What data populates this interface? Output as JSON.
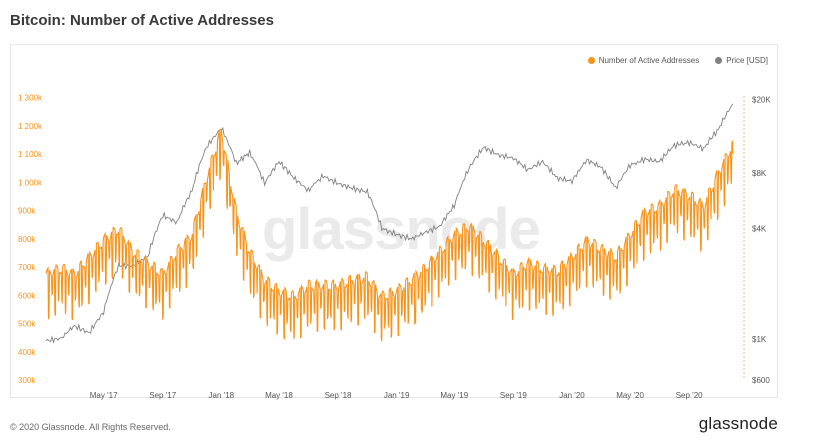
{
  "page": {
    "title": "Bitcoin: Number of Active Addresses",
    "copyright": "© 2020 Glassnode. All Rights Reserved.",
    "brand": "glassnode",
    "watermark": "glassnode"
  },
  "chart_data": {
    "type": "line",
    "title": "Bitcoin: Number of Active Addresses",
    "legend_position": "top-right",
    "x_ticks": [
      "May '17",
      "Sep '17",
      "Jan '18",
      "May '18",
      "Sep '18",
      "Jan '19",
      "May '19",
      "Sep '19",
      "Jan '20",
      "May '20",
      "Sep '20"
    ],
    "x_tick_dates": [
      "2017-05-01",
      "2017-09-01",
      "2018-01-01",
      "2018-05-01",
      "2018-09-01",
      "2019-01-01",
      "2019-05-01",
      "2019-09-01",
      "2020-01-01",
      "2020-05-01",
      "2020-09-01"
    ],
    "x_range": [
      "2017-01-01",
      "2020-12-20"
    ],
    "y_left": {
      "label": "",
      "ticks": [
        "300k",
        "400k",
        "500k",
        "600k",
        "700k",
        "800k",
        "900k",
        "1 000k",
        "1 100k",
        "1 200k",
        "1 300k"
      ],
      "range": [
        300000,
        1320000
      ],
      "color": "#f7931a"
    },
    "y_right": {
      "label": "",
      "scale": "log",
      "ticks": [
        "$600",
        "$1K",
        "$4K",
        "$8K",
        "$20K"
      ],
      "tick_values": [
        600,
        1000,
        4000,
        8000,
        20000
      ],
      "range": [
        600,
        22000
      ],
      "color": "#888888"
    },
    "grid": false,
    "series": [
      {
        "name": "Number of Active Addresses",
        "axis": "left",
        "color": "#f7931a",
        "points": [
          [
            "2017-01-01",
            640000
          ],
          [
            "2017-02-01",
            660000
          ],
          [
            "2017-03-01",
            640000
          ],
          [
            "2017-04-01",
            700000
          ],
          [
            "2017-05-01",
            760000
          ],
          [
            "2017-06-01",
            800000
          ],
          [
            "2017-07-01",
            720000
          ],
          [
            "2017-08-01",
            680000
          ],
          [
            "2017-09-01",
            640000
          ],
          [
            "2017-10-01",
            720000
          ],
          [
            "2017-11-01",
            780000
          ],
          [
            "2017-12-01",
            980000
          ],
          [
            "2018-01-01",
            1150000
          ],
          [
            "2018-02-01",
            860000
          ],
          [
            "2018-03-01",
            720000
          ],
          [
            "2018-04-01",
            620000
          ],
          [
            "2018-05-01",
            580000
          ],
          [
            "2018-06-01",
            560000
          ],
          [
            "2018-07-01",
            600000
          ],
          [
            "2018-08-01",
            600000
          ],
          [
            "2018-09-01",
            600000
          ],
          [
            "2018-10-01",
            620000
          ],
          [
            "2018-11-01",
            630000
          ],
          [
            "2018-12-01",
            560000
          ],
          [
            "2019-01-01",
            580000
          ],
          [
            "2019-02-01",
            620000
          ],
          [
            "2019-03-01",
            660000
          ],
          [
            "2019-04-01",
            720000
          ],
          [
            "2019-05-01",
            780000
          ],
          [
            "2019-06-01",
            810000
          ],
          [
            "2019-07-01",
            760000
          ],
          [
            "2019-08-01",
            700000
          ],
          [
            "2019-09-01",
            640000
          ],
          [
            "2019-10-01",
            680000
          ],
          [
            "2019-11-01",
            660000
          ],
          [
            "2019-12-01",
            650000
          ],
          [
            "2020-01-01",
            700000
          ],
          [
            "2020-02-01",
            760000
          ],
          [
            "2020-03-01",
            730000
          ],
          [
            "2020-04-01",
            700000
          ],
          [
            "2020-05-01",
            780000
          ],
          [
            "2020-06-01",
            860000
          ],
          [
            "2020-07-01",
            880000
          ],
          [
            "2020-08-01",
            940000
          ],
          [
            "2020-09-01",
            920000
          ],
          [
            "2020-10-01",
            880000
          ],
          [
            "2020-11-01",
            1000000
          ],
          [
            "2020-12-01",
            1100000
          ]
        ]
      },
      {
        "name": "Price [USD]",
        "axis": "right",
        "color": "#808080",
        "points": [
          [
            "2017-01-01",
            980
          ],
          [
            "2017-02-01",
            1010
          ],
          [
            "2017-03-01",
            1180
          ],
          [
            "2017-04-01",
            1080
          ],
          [
            "2017-05-01",
            1400
          ],
          [
            "2017-06-01",
            2500
          ],
          [
            "2017-07-01",
            2500
          ],
          [
            "2017-08-01",
            2800
          ],
          [
            "2017-09-01",
            4700
          ],
          [
            "2017-10-01",
            4300
          ],
          [
            "2017-11-01",
            6400
          ],
          [
            "2017-12-01",
            11000
          ],
          [
            "2018-01-01",
            14000
          ],
          [
            "2018-02-01",
            9000
          ],
          [
            "2018-03-01",
            10300
          ],
          [
            "2018-04-01",
            7000
          ],
          [
            "2018-05-01",
            9200
          ],
          [
            "2018-06-01",
            7500
          ],
          [
            "2018-07-01",
            6400
          ],
          [
            "2018-08-01",
            7700
          ],
          [
            "2018-09-01",
            7000
          ],
          [
            "2018-10-01",
            6600
          ],
          [
            "2018-11-01",
            6300
          ],
          [
            "2018-12-01",
            4000
          ],
          [
            "2019-01-01",
            3700
          ],
          [
            "2019-02-01",
            3500
          ],
          [
            "2019-03-01",
            3800
          ],
          [
            "2019-04-01",
            4100
          ],
          [
            "2019-05-01",
            5300
          ],
          [
            "2019-06-01",
            8500
          ],
          [
            "2019-07-01",
            11000
          ],
          [
            "2019-08-01",
            10000
          ],
          [
            "2019-09-01",
            9600
          ],
          [
            "2019-10-01",
            8300
          ],
          [
            "2019-11-01",
            9200
          ],
          [
            "2019-12-01",
            7500
          ],
          [
            "2020-01-01",
            7200
          ],
          [
            "2020-02-01",
            9400
          ],
          [
            "2020-03-01",
            8600
          ],
          [
            "2020-04-01",
            6600
          ],
          [
            "2020-05-01",
            8800
          ],
          [
            "2020-06-01",
            9500
          ],
          [
            "2020-07-01",
            9200
          ],
          [
            "2020-08-01",
            11300
          ],
          [
            "2020-09-01",
            11700
          ],
          [
            "2020-10-01",
            10800
          ],
          [
            "2020-11-01",
            13800
          ],
          [
            "2020-12-01",
            19000
          ]
        ]
      }
    ]
  }
}
